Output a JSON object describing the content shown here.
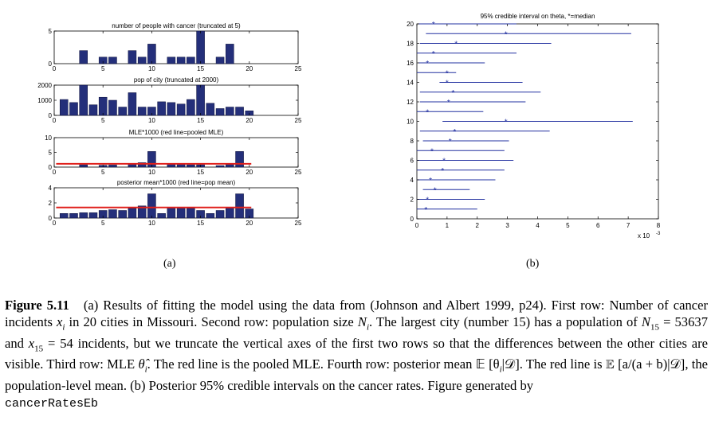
{
  "figure_a": {
    "label": "(a)",
    "panels": [
      {
        "title": "number of people with cancer (truncated at 5)",
        "yticks": [
          "0",
          "5"
        ],
        "ymax": 5
      },
      {
        "title": "pop of city (truncated at 2000)",
        "yticks": [
          "0",
          "1000",
          "2000"
        ],
        "ymax": 2000
      },
      {
        "title": "MLE*1000 (red line=pooled MLE)",
        "yticks": [
          "0",
          "5",
          "10"
        ],
        "ymax": 10
      },
      {
        "title": "posterior mean*1000 (red line=pop mean)",
        "yticks": [
          "0",
          "2",
          "4"
        ],
        "ymax": 4
      }
    ],
    "xticks": [
      "0",
      "5",
      "10",
      "15",
      "20",
      "25"
    ]
  },
  "figure_b": {
    "label": "(b)",
    "title": "95% credible interval on theta, *=median",
    "yticks": [
      "0",
      "2",
      "4",
      "6",
      "8",
      "10",
      "12",
      "14",
      "16",
      "18",
      "20"
    ],
    "xticks": [
      "0",
      "1",
      "2",
      "3",
      "4",
      "5",
      "6",
      "7",
      "8"
    ],
    "xscale_label": "x 10",
    "xscale_exp": "-3"
  },
  "chart_data": [
    {
      "type": "bar",
      "title": "number of people with cancer (truncated at 5)",
      "categories": [
        1,
        2,
        3,
        4,
        5,
        6,
        7,
        8,
        9,
        10,
        11,
        12,
        13,
        14,
        15,
        16,
        17,
        18,
        19,
        20
      ],
      "values": [
        0,
        0,
        2,
        0,
        1,
        1,
        0,
        2,
        1,
        3,
        0,
        1,
        1,
        1,
        5,
        0,
        1,
        3,
        0,
        0
      ],
      "xlim": [
        0,
        25
      ],
      "ylim": [
        0,
        5
      ]
    },
    {
      "type": "bar",
      "title": "pop of city (truncated at 2000)",
      "categories": [
        1,
        2,
        3,
        4,
        5,
        6,
        7,
        8,
        9,
        10,
        11,
        12,
        13,
        14,
        15,
        16,
        17,
        18,
        19,
        20
      ],
      "values": [
        1050,
        850,
        2000,
        700,
        1200,
        1000,
        550,
        1500,
        550,
        550,
        900,
        850,
        750,
        1050,
        2000,
        800,
        450,
        550,
        550,
        300
      ],
      "xlim": [
        0,
        25
      ],
      "ylim": [
        0,
        2000
      ]
    },
    {
      "type": "bar",
      "title": "MLE*1000 (red line=pooled MLE)",
      "categories": [
        1,
        2,
        3,
        4,
        5,
        6,
        7,
        8,
        9,
        10,
        11,
        12,
        13,
        14,
        15,
        16,
        17,
        18,
        19,
        20
      ],
      "values": [
        0,
        0,
        0.8,
        0,
        0.6,
        0.7,
        0,
        1.2,
        1.5,
        5.3,
        0,
        1.0,
        1.2,
        0.8,
        0.8,
        0,
        0.5,
        1.0,
        5.3,
        0
      ],
      "pooled": 1.1,
      "xlim": [
        0,
        25
      ],
      "ylim": [
        0,
        10
      ]
    },
    {
      "type": "bar",
      "title": "posterior mean*1000 (red line=pop mean)",
      "categories": [
        1,
        2,
        3,
        4,
        5,
        6,
        7,
        8,
        9,
        10,
        11,
        12,
        13,
        14,
        15,
        16,
        17,
        18,
        19,
        20
      ],
      "values": [
        0.6,
        0.6,
        0.7,
        0.7,
        1.0,
        1.1,
        1.0,
        1.3,
        1.6,
        3.2,
        0.6,
        1.4,
        1.4,
        1.3,
        1.0,
        0.6,
        1.0,
        1.4,
        3.2,
        1.2
      ],
      "pop_mean": 1.4,
      "xlim": [
        0,
        25
      ],
      "ylim": [
        0,
        4
      ]
    },
    {
      "type": "interval",
      "title": "95% credible interval on theta, *=median",
      "rows": [
        1,
        2,
        3,
        4,
        5,
        6,
        7,
        8,
        9,
        10,
        11,
        12,
        13,
        14,
        15,
        16,
        17,
        18,
        19,
        20
      ],
      "lower": [
        0.0,
        0.0,
        0.2,
        0.0,
        0.0,
        0.0,
        0.0,
        0.2,
        0.1,
        0.85,
        0.0,
        0.1,
        0.1,
        0.75,
        0.0,
        0.05,
        0.0,
        0.1,
        0.3,
        0.05
      ],
      "median": [
        0.3,
        0.35,
        0.6,
        0.45,
        0.85,
        0.9,
        0.5,
        1.1,
        1.25,
        2.95,
        0.35,
        1.05,
        1.2,
        1.0,
        1.0,
        0.35,
        0.55,
        1.3,
        2.95,
        0.55
      ],
      "upper": [
        2.0,
        2.25,
        1.75,
        2.6,
        2.9,
        3.2,
        2.9,
        3.05,
        4.4,
        7.15,
        2.2,
        3.6,
        4.1,
        3.5,
        1.3,
        2.25,
        3.3,
        4.45,
        7.1,
        3.3
      ],
      "xlim": [
        0,
        8
      ],
      "ylim": [
        0,
        20
      ]
    }
  ],
  "caption": {
    "heading": "Figure 5.11",
    "part1": "(a) Results of fitting the model using the data from (Johnson and Albert 1999, p24). First row: Number of cancer incidents ",
    "xi": "x",
    "xi_sub": "i",
    "part2": " in 20 cities in Missouri. Second row: population size ",
    "Ni": "N",
    "Ni_sub": "i",
    "part3": ". The largest city (number 15) has a population of ",
    "N15": "N",
    "N15_sub": "15",
    "N15_val": " = 53637 and ",
    "x15": "x",
    "x15_sub": "15",
    "x15_val": " = 54",
    "part4": " incidents, but we truncate the vertical axes of the first two rows so that the differences between the other cities are visible. Third row: MLE ",
    "theta_hat": "θ̂",
    "theta_sub": "i",
    "part5": ". The red line is the pooled MLE. Fourth row: posterior mean ",
    "E1": "𝔼 [θ",
    "E1_sub": "i",
    "E1_end": "|𝒟]",
    "part6": ". The red line is ",
    "E2": "𝔼 [a/(a + b)|𝒟]",
    "part7": ", the population-level mean. (b) Posterior 95% credible intervals on the cancer rates. Figure generated by",
    "code": "cancerRatesEb"
  }
}
